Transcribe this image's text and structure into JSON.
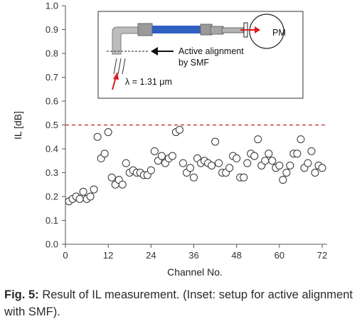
{
  "chart_data": {
    "type": "scatter",
    "xlabel": "Channel No.",
    "ylabel": "IL [dB]",
    "xlim": [
      0,
      72
    ],
    "ylim": [
      0.0,
      1.0
    ],
    "x_ticks": [
      "0",
      "12",
      "24",
      "36",
      "48",
      "60",
      "72"
    ],
    "y_ticks": [
      "0.0",
      "0.1",
      "0.2",
      "0.3",
      "0.4",
      "0.5",
      "0.6",
      "0.7",
      "0.8",
      "0.9",
      "1.0"
    ],
    "grid": false,
    "reference_line": {
      "y": 0.5,
      "style": "dashed",
      "color": "#cc2222"
    },
    "marker": "open-circle",
    "series": [
      {
        "x": [
          1,
          2,
          3,
          4,
          5,
          6,
          7,
          8,
          9,
          10,
          11,
          12,
          13,
          14,
          15,
          16,
          17,
          18,
          19,
          20,
          21,
          22,
          23,
          24,
          25,
          26,
          27,
          28,
          29,
          30,
          31,
          32,
          33,
          34,
          35,
          36,
          37,
          38,
          39,
          40,
          41,
          42,
          43,
          44,
          45,
          46,
          47,
          48,
          49,
          50,
          51,
          52,
          53,
          54,
          55,
          56,
          57,
          58,
          59,
          60,
          61,
          62,
          63,
          64,
          65,
          66,
          67,
          68,
          69,
          70,
          71,
          72
        ],
        "y": [
          0.18,
          0.19,
          0.2,
          0.19,
          0.22,
          0.19,
          0.2,
          0.23,
          0.45,
          0.36,
          0.38,
          0.47,
          0.28,
          0.25,
          0.27,
          0.25,
          0.34,
          0.3,
          0.31,
          0.3,
          0.3,
          0.29,
          0.29,
          0.31,
          0.39,
          0.35,
          0.37,
          0.34,
          0.36,
          0.37,
          0.47,
          0.48,
          0.34,
          0.3,
          0.32,
          0.28,
          0.36,
          0.34,
          0.35,
          0.34,
          0.33,
          0.43,
          0.34,
          0.3,
          0.3,
          0.32,
          0.37,
          0.36,
          0.28,
          0.28,
          0.34,
          0.38,
          0.37,
          0.44,
          0.33,
          0.35,
          0.38,
          0.35,
          0.32,
          0.33,
          0.27,
          0.3,
          0.33,
          0.38,
          0.38,
          0.44,
          0.32,
          0.34,
          0.39,
          0.3,
          0.33,
          0.32
        ]
      }
    ],
    "inset": {
      "label_pm": "PM",
      "label_alignment_line1": "Active alignment",
      "label_alignment_line2": "by SMF",
      "label_wavelength": "λ = 1.31 μm"
    }
  },
  "caption": {
    "label": "Fig. 5:",
    "text": " Result of IL measurement. (Inset: setup for active alignment with SMF)."
  },
  "colors": {
    "reference_line": "#cc2222",
    "waveguide_blue": "#2f5fbf",
    "fiber_gray": "#8f8f8f",
    "arrow_red": "#e01b1b"
  }
}
